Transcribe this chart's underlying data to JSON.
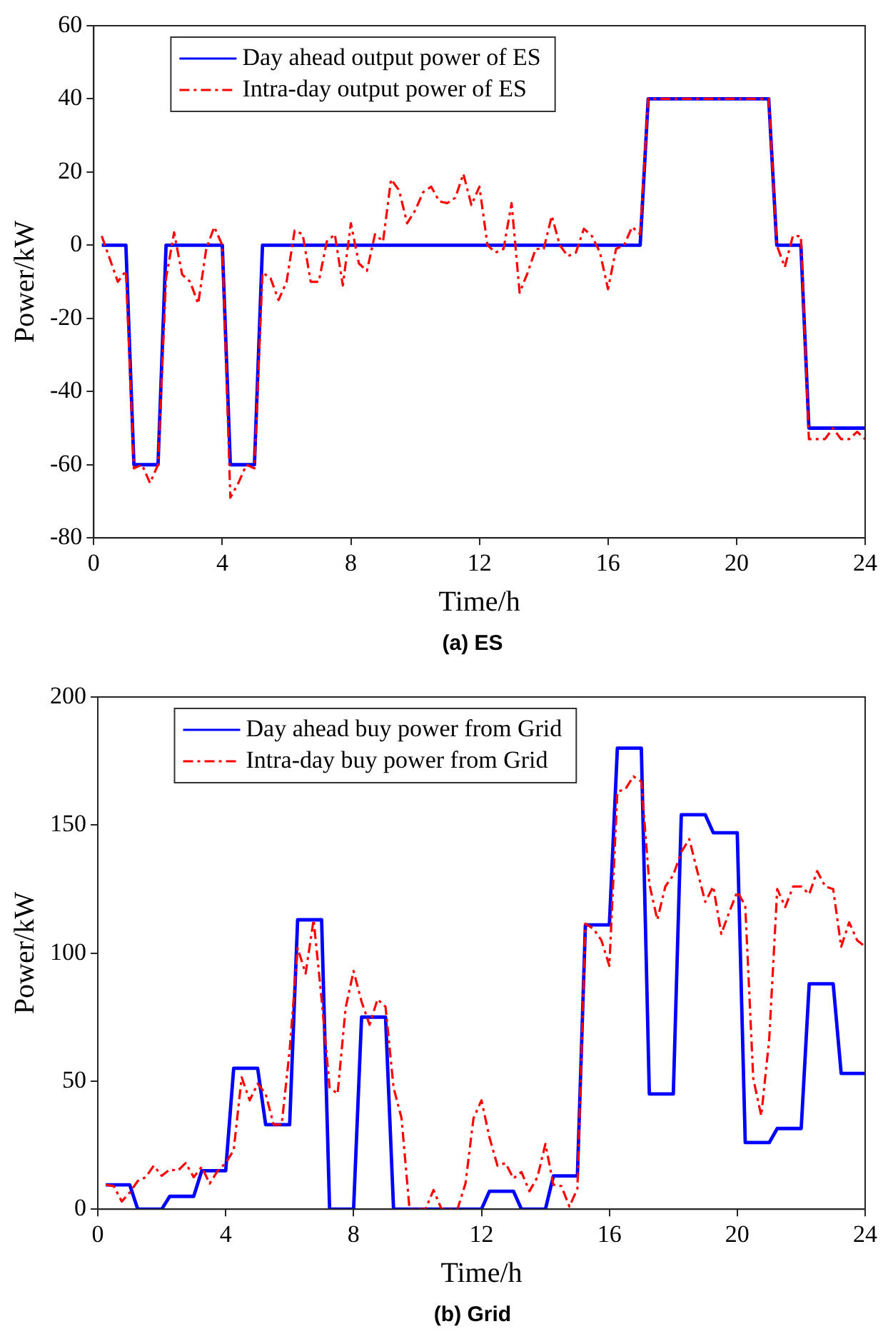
{
  "chart_data": [
    {
      "type": "line",
      "title": "(a) ES",
      "xlabel": "Time/h",
      "ylabel": "Power/kW",
      "xlim": [
        0,
        24
      ],
      "xticks": [
        0,
        4,
        8,
        12,
        16,
        20,
        24
      ],
      "ylim": [
        -80,
        60
      ],
      "yticks": [
        -80,
        -60,
        -40,
        -20,
        0,
        20,
        40,
        60
      ],
      "grid": false,
      "legend": "top left",
      "marker": "none",
      "series": [
        {
          "name": "Day ahead output power of ES",
          "color": "#0000ff",
          "line_style": "solid",
          "x": [
            0.25,
            1.0,
            1.25,
            2.0,
            2.25,
            4.0,
            4.25,
            5.0,
            5.25,
            17.0,
            17.25,
            21.0,
            21.25,
            22.0,
            22.25,
            24.0
          ],
          "values": [
            0,
            0,
            -60,
            -60,
            0,
            0,
            -60,
            -60,
            0,
            0,
            40,
            40,
            0,
            0,
            -50,
            -50
          ]
        },
        {
          "name": "Intra-day output power of ES",
          "color": "#ff0000",
          "line_style": "dashed",
          "x": [
            0.25,
            0.75,
            1.0,
            1.25,
            1.5,
            1.75,
            2.0,
            2.25,
            2.5,
            2.75,
            3.0,
            3.25,
            3.5,
            3.75,
            4.0,
            4.25,
            4.5,
            4.75,
            5.0,
            5.25,
            5.5,
            5.75,
            6.0,
            6.25,
            6.5,
            6.75,
            7.0,
            7.25,
            7.5,
            7.75,
            8.0,
            8.25,
            8.5,
            8.75,
            9.0,
            9.25,
            9.5,
            9.75,
            10.0,
            10.25,
            10.5,
            10.75,
            11.0,
            11.25,
            11.5,
            11.75,
            12.0,
            12.25,
            12.5,
            12.75,
            13.0,
            13.25,
            13.5,
            13.75,
            14.0,
            14.25,
            14.5,
            14.75,
            15.0,
            15.25,
            15.5,
            15.75,
            16.0,
            16.25,
            16.5,
            16.75,
            17.0,
            17.25,
            21.0,
            21.25,
            21.5,
            21.75,
            22.0,
            22.25,
            22.5,
            22.75,
            23.0,
            23.25,
            23.5,
            23.75,
            24.0
          ],
          "values": [
            2.5,
            -10,
            -7,
            -61,
            -60,
            -65,
            -60,
            -9,
            3.5,
            -8,
            -10,
            -16,
            -1,
            5,
            0,
            -69,
            -65,
            -60,
            -61,
            -7.5,
            -9,
            -15,
            -10,
            4,
            3,
            -10,
            -10,
            1,
            3,
            -11,
            6,
            -5,
            -7,
            3,
            1,
            18,
            15,
            6,
            9.5,
            14.5,
            16,
            12,
            11.5,
            13,
            19.5,
            11,
            16,
            0,
            -2,
            -1,
            11.5,
            -13,
            -7.5,
            -1,
            -1,
            8,
            0,
            -3,
            -2,
            4.5,
            2.5,
            -2,
            -12,
            -1,
            0,
            5,
            3,
            40,
            40,
            0,
            -6,
            2.5,
            2.5,
            -53,
            -53,
            -53,
            -50,
            -53,
            -53,
            -51,
            -53
          ]
        }
      ]
    },
    {
      "type": "line",
      "title": "(b) Grid",
      "xlabel": "Time/h",
      "ylabel": "Power/kW",
      "xlim": [
        0,
        24
      ],
      "xticks": [
        0,
        4,
        8,
        12,
        16,
        20,
        24
      ],
      "ylim": [
        0,
        200
      ],
      "yticks": [
        0,
        50,
        100,
        150,
        200
      ],
      "grid": false,
      "legend": "top left",
      "marker": "none",
      "series": [
        {
          "name": "Day ahead buy power from Grid",
          "color": "#0000ff",
          "line_style": "solid",
          "x": [
            0.25,
            1.0,
            1.25,
            2.0,
            2.25,
            3.0,
            3.25,
            4.0,
            4.25,
            5.0,
            5.25,
            6.0,
            6.25,
            7.0,
            7.25,
            8.0,
            8.25,
            9.0,
            9.25,
            12.0,
            12.25,
            13.0,
            13.25,
            14.0,
            14.25,
            15.0,
            15.25,
            16.0,
            16.25,
            17.0,
            17.25,
            18.0,
            18.25,
            19.0,
            19.25,
            20.0,
            20.25,
            21.0,
            21.25,
            22.0,
            22.25,
            23.0,
            23.25,
            24.0
          ],
          "values": [
            9.5,
            9.5,
            0,
            0,
            5,
            5,
            15,
            15,
            55,
            55,
            33,
            33,
            113,
            113,
            0,
            0,
            75,
            75,
            0,
            0,
            7,
            7,
            0,
            0,
            13,
            13,
            111,
            111,
            180,
            180,
            45,
            45,
            154,
            154,
            147,
            147,
            26,
            26,
            31.5,
            31.5,
            88,
            88,
            53,
            53
          ]
        },
        {
          "name": "Intra-day buy power from Grid",
          "color": "#ff0000",
          "line_style": "dashed",
          "x": [
            0.25,
            0.5,
            0.75,
            1.0,
            1.25,
            1.5,
            1.75,
            2.0,
            2.25,
            2.5,
            2.75,
            3.0,
            3.25,
            3.5,
            3.75,
            4.0,
            4.25,
            4.5,
            4.75,
            5.0,
            5.25,
            5.5,
            5.75,
            6.0,
            6.25,
            6.5,
            6.75,
            7.0,
            7.25,
            7.5,
            7.75,
            8.0,
            8.25,
            8.5,
            8.75,
            9.0,
            9.25,
            9.5,
            9.75,
            10.0,
            10.25,
            10.5,
            10.75,
            11.0,
            11.25,
            11.5,
            11.75,
            12.0,
            12.25,
            12.5,
            12.75,
            13.0,
            13.25,
            13.5,
            13.75,
            14.0,
            14.25,
            14.5,
            14.75,
            15.0,
            15.25,
            15.5,
            15.75,
            16.0,
            16.25,
            16.5,
            16.75,
            17.0,
            17.25,
            17.5,
            17.75,
            18.0,
            18.25,
            18.5,
            18.75,
            19.0,
            19.25,
            19.5,
            19.75,
            20.0,
            20.25,
            20.5,
            20.75,
            21.0,
            21.25,
            21.5,
            21.75,
            22.0,
            22.25,
            22.5,
            22.75,
            23.0,
            23.25,
            23.5,
            23.75,
            24.0
          ],
          "values": [
            9.5,
            9,
            3,
            6.5,
            11,
            12.5,
            17,
            13,
            15.5,
            15,
            18,
            12.5,
            16.5,
            10,
            15,
            18,
            23,
            51.5,
            42.5,
            49,
            45,
            33,
            33,
            62,
            102,
            92,
            113,
            82,
            47.5,
            45,
            78.5,
            93,
            81,
            72,
            82,
            79,
            47.5,
            35.5,
            0,
            0,
            0,
            7.5,
            0,
            0,
            0,
            10,
            35.5,
            42.5,
            28,
            17,
            18,
            12,
            14.5,
            7,
            12.5,
            25.5,
            9.5,
            9,
            1,
            8,
            111.5,
            109.5,
            105,
            95,
            163,
            164,
            169,
            167,
            127,
            113,
            126,
            130.5,
            139.5,
            144.5,
            132,
            120,
            126,
            107.5,
            116,
            124,
            118.5,
            51,
            36.5,
            66.5,
            125,
            118,
            126,
            126,
            123,
            132,
            126,
            125,
            102.5,
            112,
            105,
            102.5
          ]
        }
      ]
    }
  ]
}
